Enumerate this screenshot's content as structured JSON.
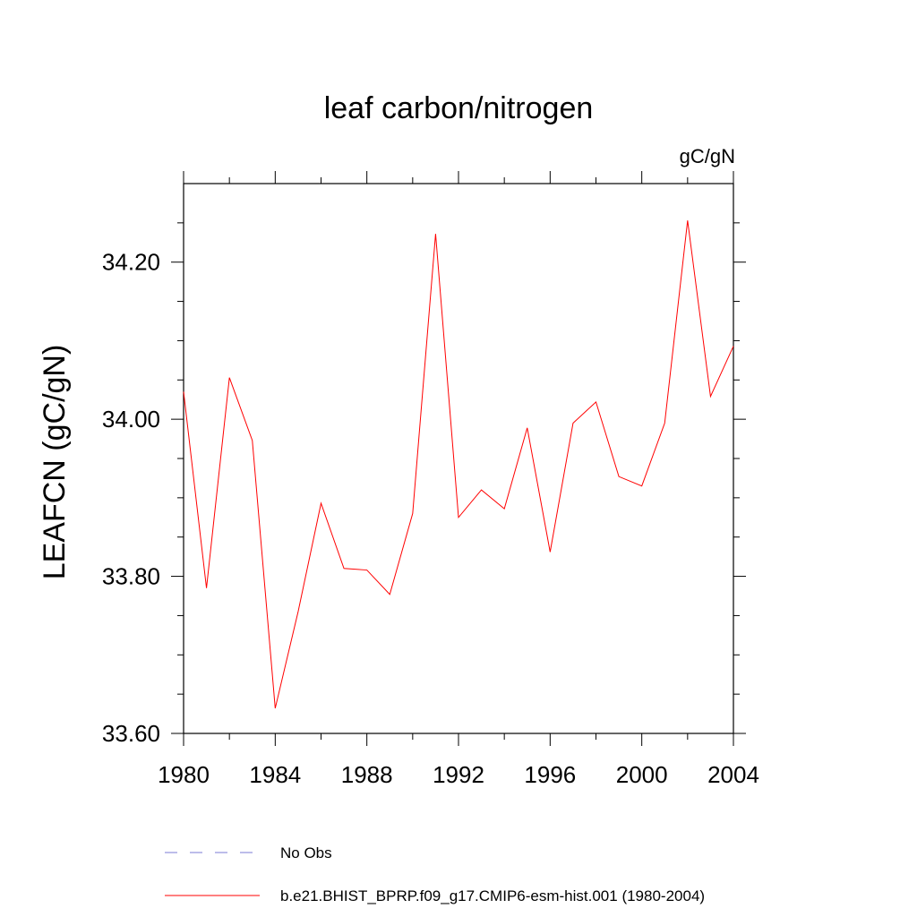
{
  "chart_data": {
    "type": "line",
    "title": "leaf carbon/nitrogen",
    "units_label": "gC/gN",
    "xlabel": "",
    "ylabel": "LEAFCN  (gC/gN)",
    "xlim": [
      1980,
      2004
    ],
    "ylim": [
      33.6,
      34.3
    ],
    "x_ticks": [
      1980,
      1984,
      1988,
      1992,
      1996,
      2000,
      2004
    ],
    "x_tick_labels": [
      "1980",
      "1984",
      "1988",
      "1992",
      "1996",
      "2000",
      "2004"
    ],
    "x_minor_ticks": [
      1982,
      1986,
      1990,
      1994,
      1998,
      2002
    ],
    "y_ticks": [
      33.6,
      33.8,
      34.0,
      34.2
    ],
    "y_tick_labels": [
      "33.60",
      "33.80",
      "34.00",
      "34.20"
    ],
    "y_minor_ticks": [
      33.65,
      33.7,
      33.75,
      33.85,
      33.9,
      33.95,
      34.05,
      34.1,
      34.15,
      34.25
    ],
    "grid": false,
    "series": [
      {
        "name": "b.e21.BHIST_BPRP.f09_g17.CMIP6-esm-hist.001 (1980-2004)",
        "color": "#ff0000",
        "dash": "solid",
        "x": [
          1980,
          1981,
          1982,
          1983,
          1984,
          1985,
          1986,
          1987,
          1988,
          1989,
          1990,
          1991,
          1992,
          1993,
          1994,
          1995,
          1996,
          1997,
          1998,
          1999,
          2000,
          2001,
          2002,
          2003,
          2004
        ],
        "values": [
          34.035,
          33.785,
          34.053,
          33.973,
          33.632,
          33.755,
          33.893,
          33.81,
          33.808,
          33.777,
          33.88,
          34.236,
          33.875,
          33.91,
          33.886,
          33.989,
          33.831,
          33.995,
          34.022,
          33.927,
          33.915,
          33.995,
          34.253,
          34.029,
          34.093
        ]
      }
    ],
    "legend": {
      "placement": "bottom",
      "entries": [
        {
          "label": "No Obs",
          "color": "#7b7bd6",
          "dash": "dashed"
        },
        {
          "label": "b.e21.BHIST_BPRP.f09_g17.CMIP6-esm-hist.001 (1980-2004)",
          "color": "#ff0000",
          "dash": "solid"
        }
      ]
    }
  }
}
